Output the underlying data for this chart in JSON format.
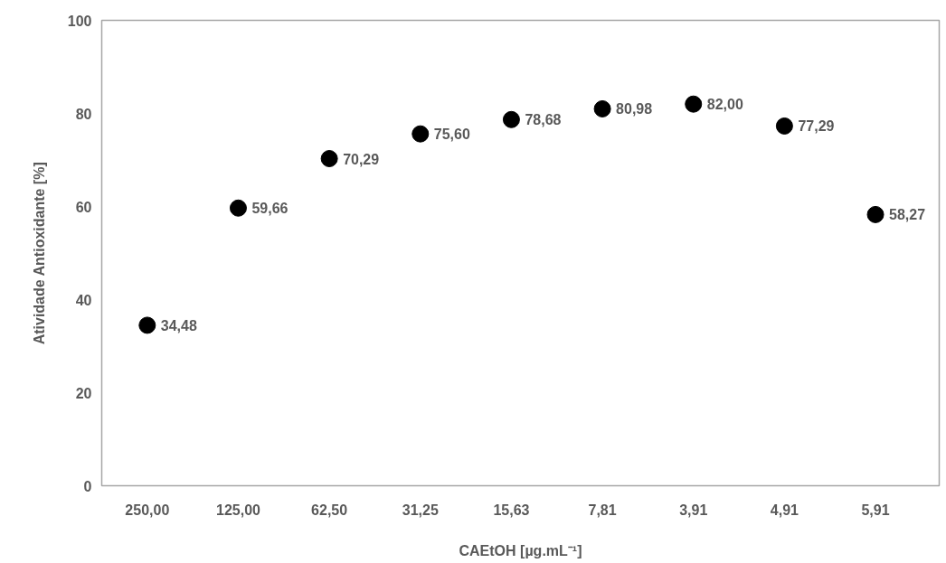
{
  "chart_data": {
    "type": "scatter",
    "xlabel": "CAEtOH [µg.mL⁻¹]",
    "ylabel": "Atividade Antioxidante [%]",
    "categories": [
      "250,00",
      "125,00",
      "62,50",
      "31,25",
      "15,63",
      "7,81",
      "3,91",
      "4,91",
      "5,91"
    ],
    "values": [
      34.48,
      59.66,
      70.29,
      75.6,
      78.68,
      80.98,
      82.0,
      77.29,
      58.27
    ],
    "value_labels": [
      "34,48",
      "59,66",
      "70,29",
      "75,60",
      "78,68",
      "80,98",
      "82,00",
      "77,29",
      "58,27"
    ],
    "color": "#000000",
    "marker": "circle",
    "ylim": [
      0,
      100
    ],
    "yticks": [
      0,
      20,
      40,
      60,
      80,
      100
    ]
  }
}
